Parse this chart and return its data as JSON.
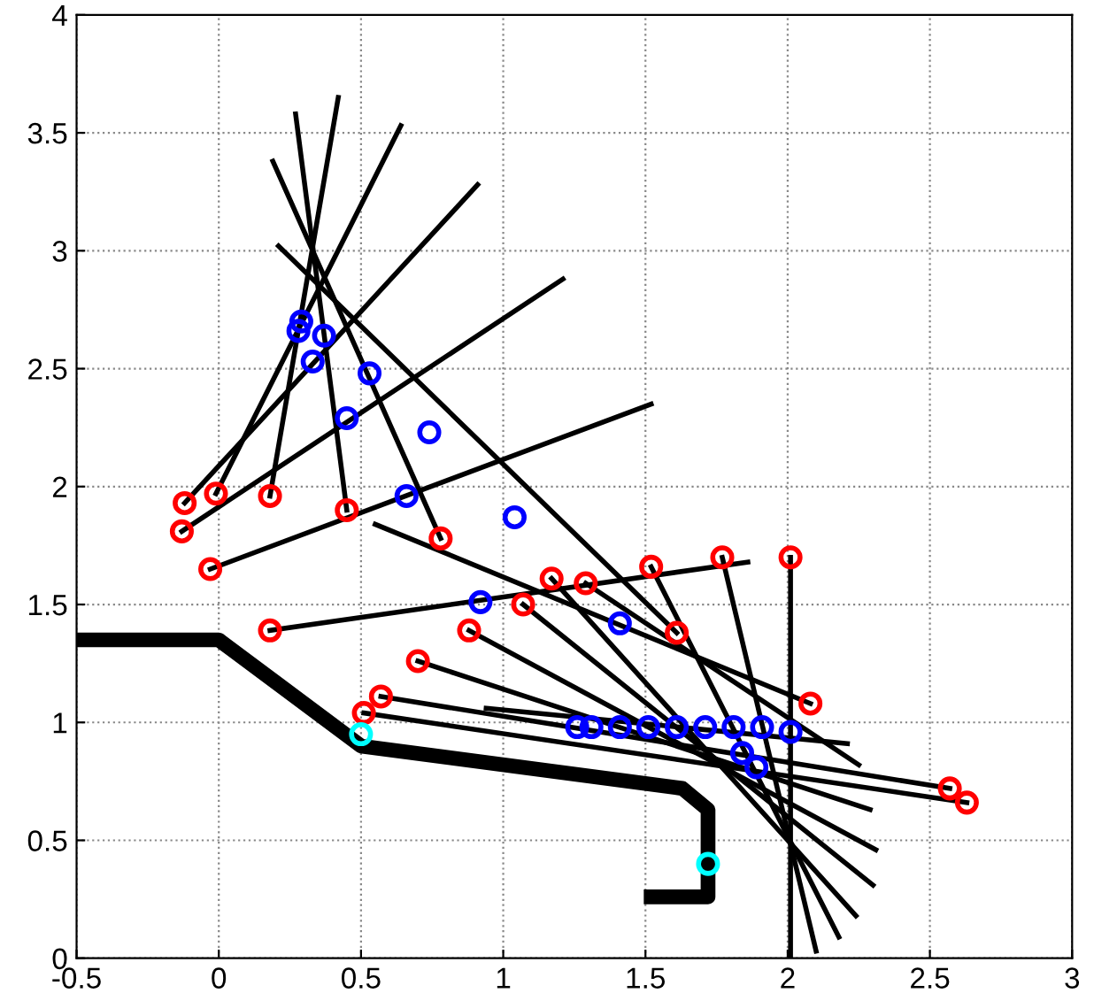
{
  "chart_data": {
    "type": "line",
    "xlim": [
      -0.5,
      3
    ],
    "ylim": [
      0,
      4
    ],
    "xticks": [
      -0.5,
      0,
      0.5,
      1,
      1.5,
      2,
      2.5,
      3
    ],
    "yticks": [
      0,
      0.5,
      1,
      1.5,
      2,
      2.5,
      3,
      3.5,
      4
    ],
    "grid": true,
    "legend": false,
    "series": [
      {
        "color": "#000000",
        "marker": "none",
        "x": [
          -0.5,
          0,
          0.5,
          1.63,
          1.72,
          1.72,
          1.52
        ],
        "values": [
          1.35,
          1.35,
          0.9,
          0.72,
          0.63,
          0.26,
          0.26
        ]
      },
      {
        "type": "line",
        "color": "#000000",
        "marker": "none",
        "x": [
          -0.12,
          0.91
        ],
        "values": [
          1.93,
          3.28
        ]
      },
      {
        "type": "line",
        "color": "#000000",
        "marker": "none",
        "x": [
          -0.01,
          0.64
        ],
        "values": [
          1.97,
          3.53
        ]
      },
      {
        "type": "line",
        "color": "#000000",
        "marker": "none",
        "x": [
          0.18,
          0.42
        ],
        "values": [
          1.96,
          3.65
        ]
      },
      {
        "type": "line",
        "color": "#000000",
        "marker": "none",
        "x": [
          0.45,
          0.27
        ],
        "values": [
          1.9,
          3.58
        ]
      },
      {
        "type": "line",
        "color": "#000000",
        "marker": "none",
        "x": [
          -0.13,
          1.21
        ],
        "values": [
          1.81,
          2.88
        ]
      },
      {
        "type": "line",
        "color": "#000000",
        "marker": "none",
        "x": [
          -0.03,
          1.52
        ],
        "values": [
          1.65,
          2.35
        ]
      },
      {
        "type": "line",
        "color": "#000000",
        "marker": "none",
        "x": [
          0.78,
          0.19
        ],
        "values": [
          1.78,
          3.38
        ]
      },
      {
        "type": "line",
        "color": "#000000",
        "marker": "none",
        "x": [
          0.21,
          1.61
        ],
        "values": [
          3.02,
          1.38
        ]
      },
      {
        "type": "line",
        "color": "#000000",
        "marker": "none",
        "x": [
          0.55,
          2.08
        ],
        "values": [
          1.84,
          1.08
        ]
      },
      {
        "type": "line",
        "color": "#000000",
        "marker": "none",
        "x": [
          0.18,
          1.86
        ],
        "values": [
          1.39,
          1.68
        ]
      },
      {
        "type": "line",
        "color": "#000000",
        "marker": "none",
        "x": [
          2.01,
          2.01
        ],
        "values": [
          1.7,
          0
        ]
      },
      {
        "type": "line",
        "color": "#000000",
        "marker": "none",
        "x": [
          1.77,
          2.1
        ],
        "values": [
          1.7,
          0.03
        ]
      },
      {
        "type": "line",
        "color": "#000000",
        "marker": "none",
        "x": [
          1.52,
          2.18
        ],
        "values": [
          1.66,
          0.09
        ]
      },
      {
        "type": "line",
        "color": "#000000",
        "marker": "none",
        "x": [
          1.17,
          2.24
        ],
        "values": [
          1.61,
          0.18
        ]
      },
      {
        "type": "line",
        "color": "#000000",
        "marker": "none",
        "x": [
          1.07,
          2.3
        ],
        "values": [
          1.5,
          0.31
        ]
      },
      {
        "type": "line",
        "color": "#000000",
        "marker": "none",
        "x": [
          0.88,
          2.31
        ],
        "values": [
          1.39,
          0.46
        ]
      },
      {
        "type": "line",
        "color": "#000000",
        "marker": "none",
        "x": [
          0.7,
          2.29
        ],
        "values": [
          1.26,
          0.63
        ]
      },
      {
        "type": "line",
        "color": "#000000",
        "marker": "none",
        "x": [
          0.57,
          2.57
        ],
        "values": [
          1.11,
          0.72
        ]
      },
      {
        "type": "line",
        "color": "#000000",
        "marker": "none",
        "x": [
          0.51,
          2.63
        ],
        "values": [
          1.04,
          0.66
        ]
      },
      {
        "type": "line",
        "color": "#000000",
        "marker": "none",
        "x": [
          0.94,
          2.21
        ],
        "values": [
          1.06,
          0.91
        ]
      },
      {
        "type": "line",
        "color": "#000000",
        "marker": "none",
        "x": [
          1.29,
          2.25
        ],
        "values": [
          1.59,
          0.82
        ]
      },
      {
        "type": "scatter",
        "color": "#ff0000",
        "marker": "circle",
        "x": [
          -0.12,
          -0.01,
          0.18,
          0.45,
          -0.13,
          -0.03,
          0.78,
          1.61,
          2.08,
          0.18,
          1.29,
          2.01,
          1.77,
          1.52,
          1.17,
          1.07,
          0.88,
          0.7,
          0.57,
          0.51,
          2.57,
          2.63
        ],
        "values": [
          1.93,
          1.97,
          1.96,
          1.9,
          1.81,
          1.65,
          1.78,
          1.38,
          1.08,
          1.39,
          1.59,
          1.7,
          1.7,
          1.66,
          1.61,
          1.5,
          1.39,
          1.26,
          1.11,
          1.04,
          0.72,
          0.66
        ]
      },
      {
        "type": "scatter",
        "color": "#0000ff",
        "marker": "circle",
        "x": [
          0.29,
          0.28,
          0.37,
          0.33,
          0.53,
          0.45,
          0.74,
          0.66,
          1.04,
          0.92,
          1.41,
          1.26,
          1.31,
          1.41,
          1.51,
          1.61,
          1.71,
          1.81,
          1.91,
          2.01,
          1.84,
          1.89
        ],
        "values": [
          2.7,
          2.66,
          2.64,
          2.53,
          2.48,
          2.29,
          2.23,
          1.96,
          1.87,
          1.51,
          1.42,
          0.98,
          0.98,
          0.98,
          0.98,
          0.98,
          0.98,
          0.98,
          0.98,
          0.96,
          0.87,
          0.81
        ]
      },
      {
        "type": "scatter",
        "color": "#00ffff",
        "marker": "circle",
        "x": [
          0.5,
          1.72
        ],
        "values": [
          0.95,
          0.4
        ]
      }
    ]
  }
}
